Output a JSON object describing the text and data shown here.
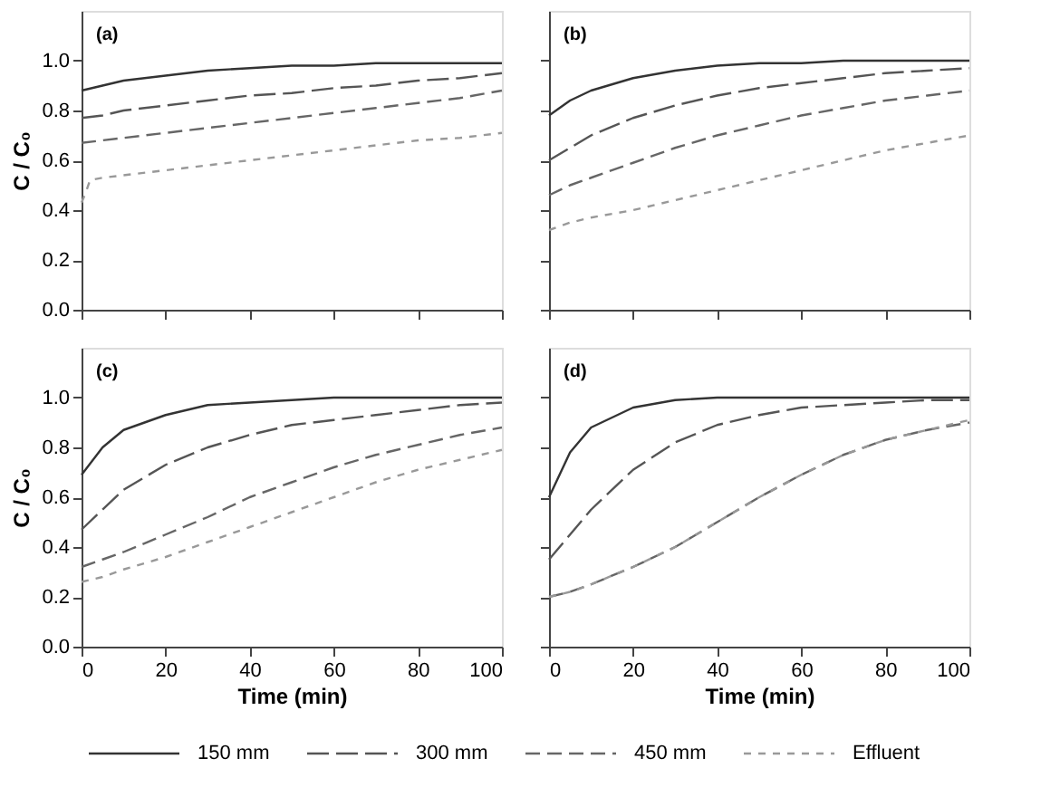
{
  "chart_data": [
    {
      "type": "line",
      "title": "(a)",
      "ylabel": "C / C₀",
      "xlim": [
        0,
        100
      ],
      "xticks": [
        0,
        20,
        40,
        60,
        80,
        100
      ],
      "ylim": [
        0,
        1.2
      ],
      "yticks": [
        {
          "value": 0,
          "label": "0.0"
        },
        {
          "value": 0.2,
          "label": "0.2"
        },
        {
          "value": 0.4,
          "label": "0.4"
        },
        {
          "value": 0.6,
          "label": "0.6"
        },
        {
          "value": 0.8,
          "label": "0.8"
        },
        {
          "value": 1,
          "label": "1.0"
        }
      ],
      "tick_labels": "y",
      "series": [
        {
          "color": "#333333",
          "line_style": "solid",
          "x": [
            0,
            5,
            10,
            20,
            30,
            40,
            50,
            60,
            70,
            80,
            90,
            100
          ],
          "values": [
            0.88,
            0.9,
            0.92,
            0.94,
            0.96,
            0.97,
            0.98,
            0.98,
            0.99,
            0.99,
            0.99,
            0.99
          ]
        },
        {
          "color": "#555555",
          "line_style": "dashed",
          "x": [
            0,
            5,
            10,
            20,
            30,
            40,
            50,
            60,
            70,
            80,
            90,
            100
          ],
          "values": [
            0.77,
            0.78,
            0.8,
            0.82,
            0.84,
            0.86,
            0.87,
            0.89,
            0.9,
            0.92,
            0.93,
            0.95
          ]
        },
        {
          "color": "#666666",
          "line_style": "dashed",
          "x": [
            0,
            5,
            10,
            20,
            30,
            40,
            50,
            60,
            70,
            80,
            90,
            100
          ],
          "values": [
            0.67,
            0.68,
            0.69,
            0.71,
            0.73,
            0.75,
            0.77,
            0.79,
            0.81,
            0.83,
            0.85,
            0.88
          ]
        },
        {
          "color": "#999999",
          "line_style": "dashed",
          "x": [
            0,
            1,
            2,
            5,
            10,
            20,
            30,
            40,
            50,
            60,
            70,
            80,
            90,
            100
          ],
          "values": [
            0.43,
            0.47,
            0.52,
            0.53,
            0.54,
            0.56,
            0.58,
            0.6,
            0.62,
            0.64,
            0.66,
            0.68,
            0.69,
            0.71
          ]
        }
      ]
    },
    {
      "type": "line",
      "title": "(b)",
      "xlim": [
        0,
        100
      ],
      "xticks": [
        0,
        20,
        40,
        60,
        80,
        100
      ],
      "ylim": [
        0,
        1.2
      ],
      "yticks": [
        0,
        0.2,
        0.4,
        0.6,
        0.8,
        1
      ],
      "tick_labels": false,
      "series": [
        {
          "color": "#333333",
          "line_style": "solid",
          "x": [
            0,
            5,
            10,
            20,
            30,
            40,
            50,
            60,
            70,
            80,
            90,
            100
          ],
          "values": [
            0.78,
            0.84,
            0.88,
            0.93,
            0.96,
            0.98,
            0.99,
            0.99,
            1.0,
            1.0,
            1.0,
            1.0
          ]
        },
        {
          "color": "#555555",
          "line_style": "dashed",
          "x": [
            0,
            5,
            10,
            20,
            30,
            40,
            50,
            60,
            70,
            80,
            90,
            100
          ],
          "values": [
            0.6,
            0.65,
            0.7,
            0.77,
            0.82,
            0.86,
            0.89,
            0.91,
            0.93,
            0.95,
            0.96,
            0.97
          ]
        },
        {
          "color": "#666666",
          "line_style": "dashed",
          "x": [
            0,
            5,
            10,
            20,
            30,
            40,
            50,
            60,
            70,
            80,
            90,
            100
          ],
          "values": [
            0.46,
            0.5,
            0.53,
            0.59,
            0.65,
            0.7,
            0.74,
            0.78,
            0.81,
            0.84,
            0.86,
            0.88
          ]
        },
        {
          "color": "#999999",
          "line_style": "dashed",
          "x": [
            0,
            5,
            10,
            20,
            30,
            40,
            50,
            60,
            70,
            80,
            90,
            100
          ],
          "values": [
            0.32,
            0.35,
            0.37,
            0.4,
            0.44,
            0.48,
            0.52,
            0.56,
            0.6,
            0.64,
            0.67,
            0.7
          ]
        }
      ]
    },
    {
      "type": "line",
      "title": "(c)",
      "xlabel": "Time (min)",
      "ylabel": "C / C₀",
      "xlim": [
        0,
        100
      ],
      "xticks": [
        0,
        20,
        40,
        60,
        80,
        100
      ],
      "ylim": [
        0,
        1.2
      ],
      "yticks": [
        {
          "value": 0,
          "label": "0.0"
        },
        {
          "value": 0.2,
          "label": "0.2"
        },
        {
          "value": 0.4,
          "label": "0.4"
        },
        {
          "value": 0.6,
          "label": "0.6"
        },
        {
          "value": 0.8,
          "label": "0.8"
        },
        {
          "value": 1,
          "label": "1.0"
        }
      ],
      "series": [
        {
          "color": "#333333",
          "line_style": "solid",
          "x": [
            0,
            5,
            10,
            20,
            30,
            40,
            50,
            60,
            70,
            80,
            90,
            100
          ],
          "values": [
            0.69,
            0.8,
            0.87,
            0.93,
            0.97,
            0.98,
            0.99,
            1.0,
            1.0,
            1.0,
            1.0,
            1.0
          ]
        },
        {
          "color": "#555555",
          "line_style": "dashed",
          "x": [
            0,
            5,
            10,
            20,
            30,
            40,
            50,
            60,
            70,
            80,
            90,
            100
          ],
          "values": [
            0.47,
            0.55,
            0.63,
            0.73,
            0.8,
            0.85,
            0.89,
            0.91,
            0.93,
            0.95,
            0.97,
            0.98
          ]
        },
        {
          "color": "#666666",
          "line_style": "dashed",
          "x": [
            0,
            5,
            10,
            20,
            30,
            40,
            50,
            60,
            70,
            80,
            90,
            100
          ],
          "values": [
            0.32,
            0.35,
            0.38,
            0.45,
            0.52,
            0.6,
            0.66,
            0.72,
            0.77,
            0.81,
            0.85,
            0.88
          ]
        },
        {
          "color": "#999999",
          "line_style": "dashed",
          "x": [
            0,
            5,
            10,
            20,
            30,
            40,
            50,
            60,
            70,
            80,
            90,
            100
          ],
          "values": [
            0.26,
            0.28,
            0.31,
            0.36,
            0.42,
            0.48,
            0.54,
            0.6,
            0.66,
            0.71,
            0.75,
            0.79
          ]
        }
      ]
    },
    {
      "type": "line",
      "title": "(d)",
      "xlabel": "Time (min)",
      "xlim": [
        0,
        100
      ],
      "xticks": [
        0,
        20,
        40,
        60,
        80,
        100
      ],
      "ylim": [
        0,
        1.2
      ],
      "yticks": [
        0,
        0.2,
        0.4,
        0.6,
        0.8,
        1
      ],
      "tick_labels": "x",
      "legend": "bottom",
      "series": [
        {
          "name": "150 mm",
          "color": "#333333",
          "line_style": "solid",
          "x": [
            0,
            5,
            10,
            20,
            30,
            40,
            50,
            60,
            70,
            80,
            90,
            100
          ],
          "values": [
            0.6,
            0.78,
            0.88,
            0.96,
            0.99,
            1.0,
            1.0,
            1.0,
            1.0,
            1.0,
            1.0,
            1.0
          ]
        },
        {
          "name": "300 mm",
          "color": "#555555",
          "line_style": "dashed",
          "x": [
            0,
            5,
            10,
            20,
            30,
            40,
            50,
            60,
            70,
            80,
            90,
            100
          ],
          "values": [
            0.35,
            0.45,
            0.55,
            0.71,
            0.82,
            0.89,
            0.93,
            0.96,
            0.97,
            0.98,
            0.99,
            0.99
          ]
        },
        {
          "name": "450 mm",
          "color": "#666666",
          "line_style": "dashed",
          "x": [
            0,
            5,
            10,
            20,
            30,
            40,
            50,
            60,
            70,
            80,
            90,
            100
          ],
          "values": [
            0.2,
            0.22,
            0.25,
            0.32,
            0.4,
            0.5,
            0.6,
            0.69,
            0.77,
            0.83,
            0.87,
            0.9
          ]
        },
        {
          "name": "Effluent",
          "color": "#999999",
          "line_style": "dashed",
          "x": [
            0,
            5,
            10,
            20,
            30,
            40,
            50,
            60,
            70,
            80,
            90,
            100
          ],
          "values": [
            0.2,
            0.22,
            0.25,
            0.32,
            0.4,
            0.5,
            0.6,
            0.69,
            0.77,
            0.83,
            0.87,
            0.91
          ]
        }
      ]
    }
  ]
}
